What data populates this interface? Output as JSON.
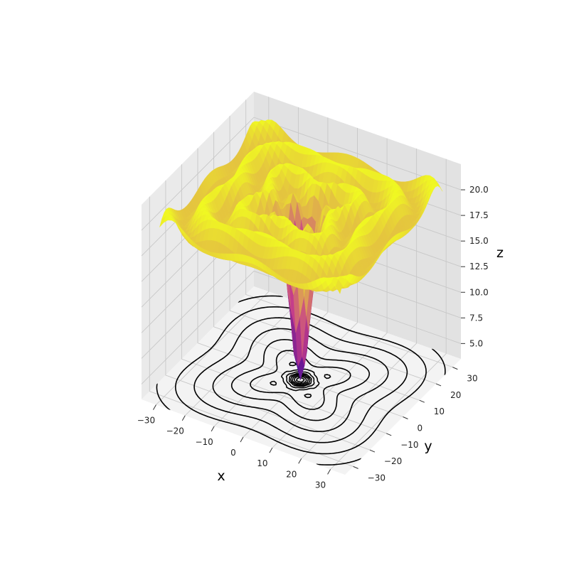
{
  "chart_data": {
    "type": "surface3d",
    "title": "",
    "colormap": "plasma",
    "colors": {
      "low": "#3a049a",
      "mid": "#c73e8a",
      "high": "#f0f921",
      "pane_left": "#eaeaea",
      "pane_right": "#e2e2e2",
      "pane_floor": "#f3f3f3",
      "grid": "#c8c8c8",
      "contour": "#000000"
    },
    "function_description": "Radially symmetric well with ripples: deep minimum at origin, plateau near 20 with oscillations",
    "x_axis": {
      "label": "x",
      "range": [
        -35,
        35
      ],
      "ticks": [
        -30,
        -20,
        -10,
        0,
        10,
        20,
        30
      ],
      "tick_labels": [
        "−30",
        "−20",
        "−10",
        "0",
        "10",
        "20",
        "30"
      ]
    },
    "y_axis": {
      "label": "y",
      "range": [
        -35,
        35
      ],
      "ticks": [
        -30,
        -20,
        -10,
        0,
        10,
        20,
        30
      ],
      "tick_labels": [
        "−30",
        "−20",
        "−10",
        "0",
        "10",
        "20",
        "30"
      ]
    },
    "z_axis": {
      "label": "z",
      "range": [
        3.5,
        22.5
      ],
      "ticks": [
        5.0,
        7.5,
        10.0,
        12.5,
        15.0,
        17.5,
        20.0
      ],
      "tick_labels": [
        "5.0",
        "7.5",
        "10.0",
        "12.5",
        "15.0",
        "17.5",
        "20.0"
      ]
    },
    "surface": {
      "z_min": 3.5,
      "z_plateau": 20,
      "ripple_amplitude": 1.2
    },
    "contour_projection": {
      "plane": "floor",
      "levels": [
        4.5,
        6,
        7.5,
        9,
        10.5,
        13,
        16,
        20
      ]
    },
    "grid": true
  }
}
